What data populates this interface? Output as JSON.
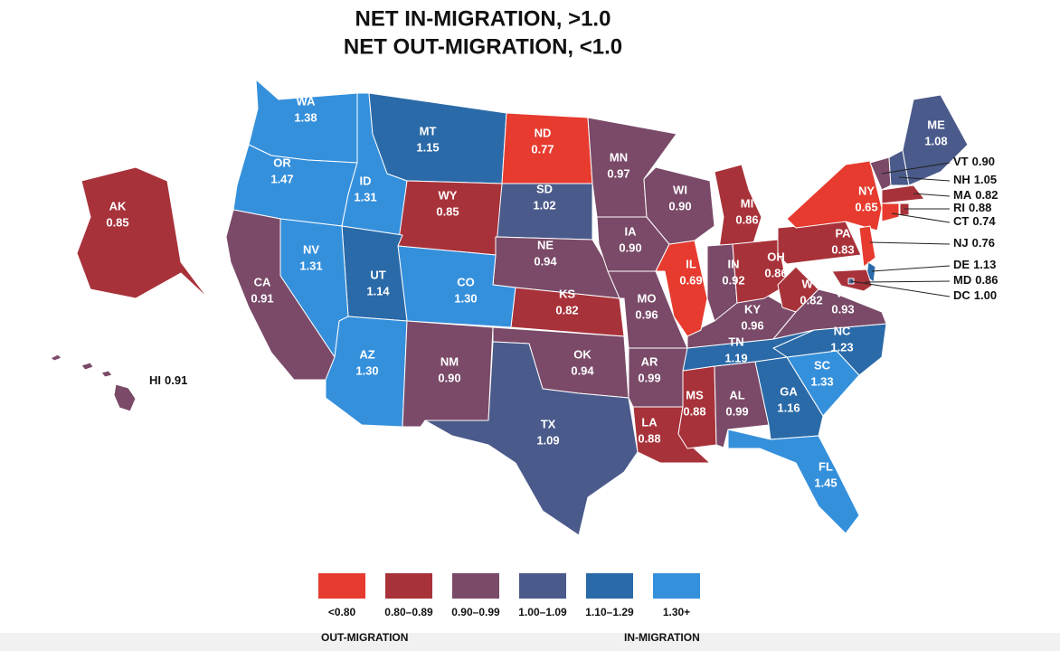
{
  "chart_data": {
    "type": "choropleth",
    "title": "NET IN-MIGRATION, >1.0",
    "subtitle": "NET OUT-MIGRATION, <1.0",
    "categories": [
      "WA",
      "OR",
      "ID",
      "MT",
      "ND",
      "SD",
      "WY",
      "NE",
      "CO",
      "UT",
      "NV",
      "CA",
      "AZ",
      "NM",
      "KS",
      "OK",
      "TX",
      "MN",
      "IA",
      "MO",
      "AR",
      "LA",
      "MS",
      "AL",
      "GA",
      "FL",
      "SC",
      "NC",
      "TN",
      "KY",
      "IL",
      "WI",
      "MI",
      "IN",
      "OH",
      "WV",
      "VA",
      "PA",
      "NY",
      "VT",
      "NH",
      "ME",
      "MA",
      "CT",
      "RI",
      "NJ",
      "DE",
      "MD",
      "DC",
      "AK",
      "HI"
    ],
    "values": [
      1.38,
      1.47,
      1.31,
      1.15,
      0.77,
      1.02,
      0.85,
      0.94,
      1.3,
      1.14,
      1.31,
      0.91,
      1.3,
      0.9,
      0.82,
      0.94,
      1.09,
      0.97,
      0.9,
      0.96,
      0.99,
      0.88,
      0.88,
      0.99,
      1.16,
      1.45,
      1.33,
      1.23,
      1.19,
      0.96,
      0.69,
      0.9,
      0.86,
      0.92,
      0.86,
      0.82,
      0.93,
      0.83,
      0.65,
      0.9,
      1.05,
      1.08,
      0.82,
      0.74,
      0.88,
      0.76,
      1.13,
      0.86,
      1.0,
      0.85,
      0.91
    ],
    "value_labels": [
      "1.38",
      "1.47",
      "1.31",
      "1.15",
      "0.77",
      "1.02",
      "0.85",
      "0.94",
      "1.30",
      "1.14",
      "1.31",
      "0.91",
      "1.30",
      "0.90",
      "0.82",
      "0.94",
      "1.09",
      "0.97",
      "0.90",
      "0.96",
      "0.99",
      "0.88",
      "0.88",
      "0.99",
      "1.16",
      "1.45",
      "1.33",
      "1.23",
      "1.19",
      "0.96",
      "0.69",
      "0.90",
      "0.86",
      "0.92",
      "0.86",
      "0.82",
      "0.93",
      "0.83",
      "0.65",
      "0.90",
      "1.05",
      "1.08",
      "0.82",
      "0.74",
      "0.88",
      "0.76",
      "1.13",
      "0.86",
      "1.00",
      "0.85",
      "0.91"
    ],
    "legend": {
      "items": [
        {
          "label": "<0.80",
          "color": "#e63b2e"
        },
        {
          "label": "0.80–0.89",
          "value": 0.8,
          "color": "#a8323a"
        },
        {
          "label": "0.90–0.99",
          "value": 0.9,
          "color": "#7a4a68"
        },
        {
          "label": "1.00–1.09",
          "value": 1.0,
          "color": "#4a5a8a"
        },
        {
          "label": "1.10–1.29",
          "value": 1.1,
          "color": "#2a6aa8"
        },
        {
          "label": "1.30+",
          "value": 1.3,
          "color": "#3590dc"
        }
      ],
      "left_label": "OUT-MIGRATION",
      "right_label": "IN-MIGRATION"
    }
  }
}
